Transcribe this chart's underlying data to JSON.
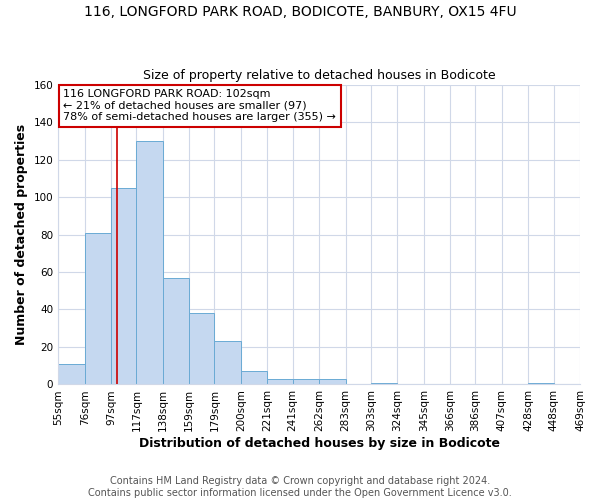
{
  "title": "116, LONGFORD PARK ROAD, BODICOTE, BANBURY, OX15 4FU",
  "subtitle": "Size of property relative to detached houses in Bodicote",
  "xlabel": "Distribution of detached houses by size in Bodicote",
  "ylabel": "Number of detached properties",
  "bin_edges": [
    55,
    76,
    97,
    117,
    138,
    159,
    179,
    200,
    221,
    241,
    262,
    283,
    303,
    324,
    345,
    366,
    386,
    407,
    428,
    448,
    469
  ],
  "bin_labels": [
    "55sqm",
    "76sqm",
    "97sqm",
    "117sqm",
    "138sqm",
    "159sqm",
    "179sqm",
    "200sqm",
    "221sqm",
    "241sqm",
    "262sqm",
    "283sqm",
    "303sqm",
    "324sqm",
    "345sqm",
    "366sqm",
    "386sqm",
    "407sqm",
    "428sqm",
    "448sqm",
    "469sqm"
  ],
  "counts": [
    11,
    81,
    105,
    130,
    57,
    38,
    23,
    7,
    3,
    3,
    3,
    0,
    1,
    0,
    0,
    0,
    0,
    0,
    1,
    0,
    1
  ],
  "bar_color": "#c5d8f0",
  "bar_edge_color": "#6aaad4",
  "vline_x": 102,
  "vline_color": "#cc0000",
  "annotation_text": "116 LONGFORD PARK ROAD: 102sqm\n← 21% of detached houses are smaller (97)\n78% of semi-detached houses are larger (355) →",
  "annotation_box_color": "white",
  "annotation_box_edge_color": "#cc0000",
  "ylim": [
    0,
    160
  ],
  "yticks": [
    0,
    20,
    40,
    60,
    80,
    100,
    120,
    140,
    160
  ],
  "footer_line1": "Contains HM Land Registry data © Crown copyright and database right 2024.",
  "footer_line2": "Contains public sector information licensed under the Open Government Licence v3.0.",
  "fig_bg_color": "#ffffff",
  "plot_bg_color": "#ffffff",
  "grid_color": "#d0d8e8",
  "title_fontsize": 10,
  "subtitle_fontsize": 9,
  "axis_label_fontsize": 9,
  "tick_fontsize": 7.5,
  "footer_fontsize": 7,
  "annot_fontsize": 8
}
